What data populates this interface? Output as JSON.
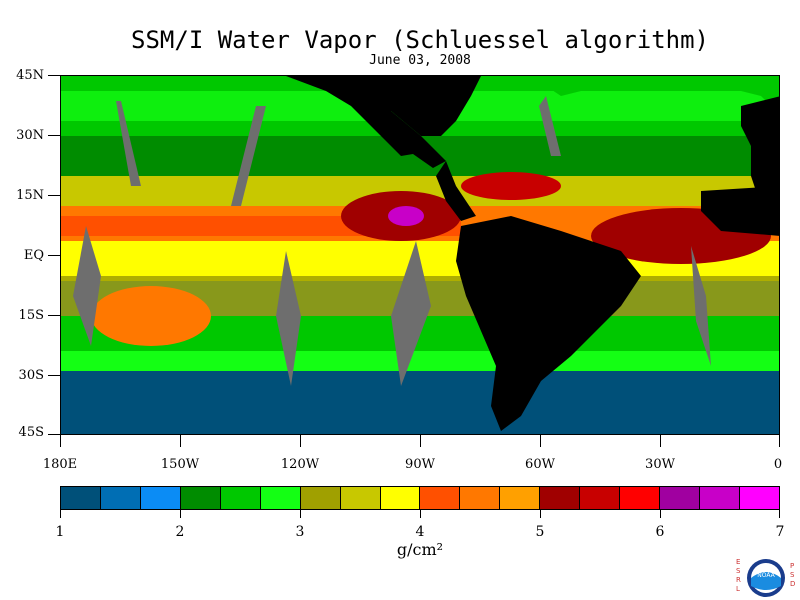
{
  "title": "SSM/I Water Vapor (Schluessel algorithm)",
  "subtitle": "June 03, 2008",
  "latitude_labels": [
    "45N",
    "30N",
    "15N",
    "EQ",
    "15S",
    "30S",
    "45S"
  ],
  "longitude_labels": [
    "180E",
    "150W",
    "120W",
    "90W",
    "60W",
    "30W",
    "0"
  ],
  "colorbar": {
    "tick_labels": [
      "1",
      "2",
      "3",
      "4",
      "5",
      "6",
      "7"
    ],
    "colors": [
      "#005079",
      "#006eb4",
      "#0b8cf5",
      "#008c00",
      "#00c800",
      "#14ff14",
      "#a0a000",
      "#c8c800",
      "#ffff00",
      "#ff5000",
      "#ff7800",
      "#ffa000",
      "#a00000",
      "#c80000",
      "#ff0000",
      "#a000a0",
      "#c800c8",
      "#ff00ff"
    ],
    "unit_label": "g/cm²"
  },
  "colors": {
    "land": "#000000",
    "missing_swath_gap": "#6e6e6e"
  },
  "logo": {
    "left_letters": [
      "E",
      "S",
      "R",
      "L"
    ],
    "right_letters": [
      "P",
      "S",
      "D"
    ],
    "center_text": "NOAA"
  }
}
